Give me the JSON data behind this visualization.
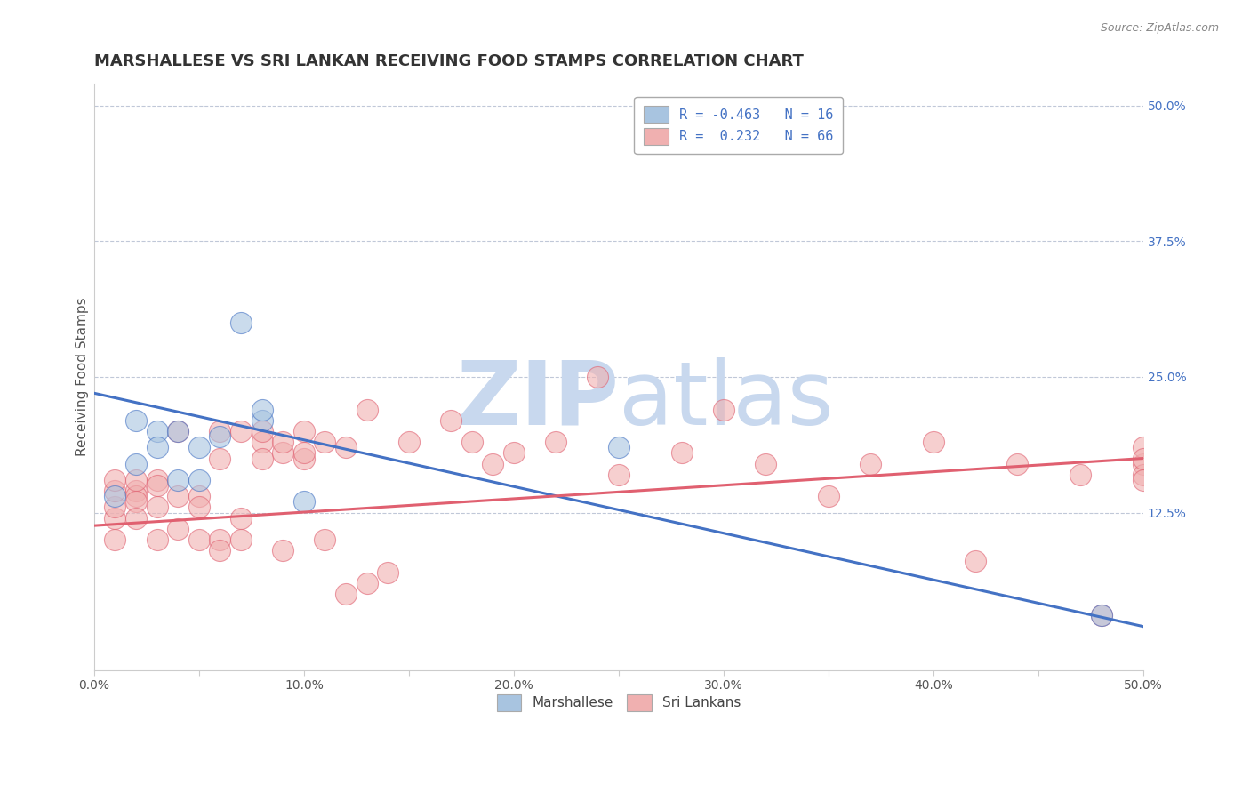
{
  "title": "MARSHALLESE VS SRI LANKAN RECEIVING FOOD STAMPS CORRELATION CHART",
  "source": "Source: ZipAtlas.com",
  "xlabel": "",
  "ylabel": "Receiving Food Stamps",
  "xlim": [
    0,
    0.5
  ],
  "ylim": [
    -0.02,
    0.52
  ],
  "xticks": [
    0.0,
    0.05,
    0.1,
    0.15,
    0.2,
    0.25,
    0.3,
    0.35,
    0.4,
    0.45,
    0.5
  ],
  "xtick_labels": [
    "0.0%",
    "",
    "10.0%",
    "",
    "20.0%",
    "",
    "30.0%",
    "",
    "40.0%",
    "",
    "50.0%"
  ],
  "yticks_right": [
    0.0,
    0.125,
    0.25,
    0.375,
    0.5
  ],
  "ytick_right_labels": [
    "",
    "12.5%",
    "25.0%",
    "37.5%",
    "50.0%"
  ],
  "blue_r": "-0.463",
  "blue_n": "16",
  "pink_r": "0.232",
  "pink_n": "66",
  "blue_color": "#a8c4e0",
  "pink_color": "#f0b0b0",
  "blue_line_color": "#4472c4",
  "pink_line_color": "#e06070",
  "background_color": "#ffffff",
  "grid_color": "#c0c8d8",
  "watermark_zip": "ZIP",
  "watermark_atlas": "atlas",
  "watermark_color": "#c8d8ee",
  "legend_label_blue": "Marshallese",
  "legend_label_pink": "Sri Lankans",
  "blue_scatter_x": [
    0.01,
    0.02,
    0.02,
    0.03,
    0.03,
    0.04,
    0.04,
    0.05,
    0.05,
    0.06,
    0.07,
    0.08,
    0.08,
    0.1,
    0.25,
    0.48
  ],
  "blue_scatter_y": [
    0.14,
    0.21,
    0.17,
    0.2,
    0.185,
    0.155,
    0.2,
    0.155,
    0.185,
    0.195,
    0.3,
    0.21,
    0.22,
    0.135,
    0.185,
    0.03
  ],
  "pink_scatter_x": [
    0.01,
    0.01,
    0.01,
    0.01,
    0.01,
    0.02,
    0.02,
    0.02,
    0.02,
    0.02,
    0.03,
    0.03,
    0.03,
    0.03,
    0.04,
    0.04,
    0.04,
    0.05,
    0.05,
    0.05,
    0.06,
    0.06,
    0.06,
    0.06,
    0.07,
    0.07,
    0.07,
    0.08,
    0.08,
    0.08,
    0.09,
    0.09,
    0.09,
    0.1,
    0.1,
    0.1,
    0.11,
    0.11,
    0.12,
    0.12,
    0.13,
    0.13,
    0.14,
    0.15,
    0.17,
    0.18,
    0.19,
    0.2,
    0.22,
    0.24,
    0.25,
    0.28,
    0.3,
    0.32,
    0.35,
    0.37,
    0.4,
    0.42,
    0.44,
    0.47,
    0.48,
    0.5,
    0.5,
    0.5,
    0.5,
    0.5
  ],
  "pink_scatter_y": [
    0.12,
    0.13,
    0.145,
    0.155,
    0.1,
    0.145,
    0.14,
    0.155,
    0.135,
    0.12,
    0.155,
    0.13,
    0.15,
    0.1,
    0.2,
    0.14,
    0.11,
    0.14,
    0.13,
    0.1,
    0.2,
    0.175,
    0.1,
    0.09,
    0.12,
    0.2,
    0.1,
    0.19,
    0.2,
    0.175,
    0.09,
    0.18,
    0.19,
    0.2,
    0.175,
    0.18,
    0.1,
    0.19,
    0.185,
    0.05,
    0.22,
    0.06,
    0.07,
    0.19,
    0.21,
    0.19,
    0.17,
    0.18,
    0.19,
    0.25,
    0.16,
    0.18,
    0.22,
    0.17,
    0.14,
    0.17,
    0.19,
    0.08,
    0.17,
    0.16,
    0.03,
    0.17,
    0.16,
    0.185,
    0.155,
    0.175
  ],
  "blue_line_x": [
    0.0,
    0.5
  ],
  "blue_line_y": [
    0.235,
    0.02
  ],
  "pink_line_x": [
    0.0,
    0.5
  ],
  "pink_line_y": [
    0.113,
    0.175
  ],
  "title_fontsize": 13,
  "label_fontsize": 11,
  "tick_fontsize": 10,
  "legend_fontsize": 11
}
